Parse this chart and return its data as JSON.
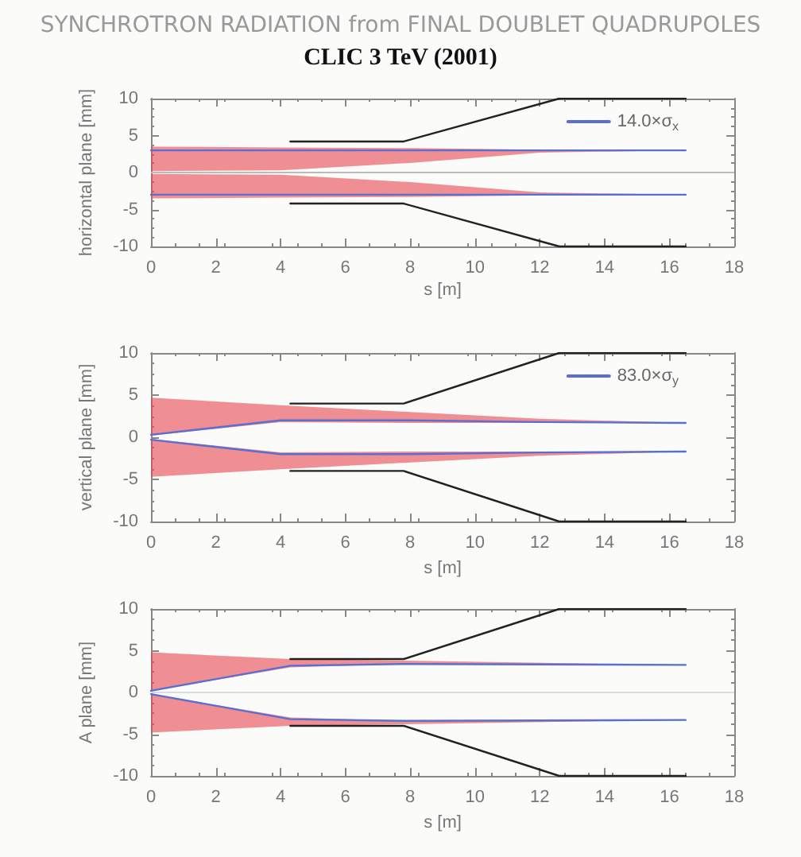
{
  "chart_data": [
    {
      "type": "line",
      "title": "SYNCHROTRON RADIATION from FINAL DOUBLET QUADRUPOLES",
      "subtitle": "CLIC 3 TeV (2001)",
      "xlabel": "s [m]",
      "ylabel": "horizontal plane [mm]",
      "xlim": [
        0,
        18
      ],
      "xticks": [
        0,
        2,
        4,
        6,
        8,
        10,
        12,
        14,
        16,
        18
      ],
      "ylim": [
        -10,
        10
      ],
      "yticks": [
        -10,
        -5,
        0,
        5,
        10
      ],
      "grid": false,
      "legend": "top right",
      "marker": "none",
      "line_style": "solid",
      "ref_lines": [
        {
          "axis": "y",
          "value": 0,
          "color": "#bbbbbb"
        }
      ],
      "series": [
        {
          "color": "#222222",
          "x": [
            4.3,
            7.8,
            12.6,
            16.5
          ],
          "values": [
            4.2,
            4.2,
            10,
            10
          ]
        },
        {
          "color": "#222222",
          "x": [
            4.3,
            7.8,
            12.6,
            16.5
          ],
          "values": [
            -4.2,
            -4.2,
            -10,
            -10
          ]
        },
        {
          "name": "14.0×σ$_{x}$",
          "color": "#5a6fd0",
          "x": [
            0,
            4,
            8,
            12,
            16.5
          ],
          "values": [
            3,
            3,
            3,
            3,
            3
          ],
          "lower": [
            0.2,
            0.3,
            1.3,
            2.7,
            3
          ],
          "upper": [
            3.5,
            3.4,
            3.3,
            3.1,
            3
          ]
        },
        {
          "color": "#5a6fd0",
          "x": [
            0,
            4,
            8,
            12,
            16.5
          ],
          "values": [
            -3,
            -3,
            -3,
            -3,
            -3
          ],
          "lower": [
            -3.5,
            -3.4,
            -3.3,
            -3.1,
            -3
          ],
          "upper": [
            -0.2,
            -0.3,
            -1.3,
            -2.7,
            -3
          ]
        }
      ]
    },
    {
      "type": "line",
      "xlabel": "s [m]",
      "ylabel": "vertical plane [mm]",
      "xlim": [
        0,
        18
      ],
      "xticks": [
        0,
        2,
        4,
        6,
        8,
        10,
        12,
        14,
        16,
        18
      ],
      "ylim": [
        -10,
        10
      ],
      "yticks": [
        -10,
        -5,
        0,
        5,
        10
      ],
      "grid": false,
      "legend": "top right",
      "marker": "none",
      "line_style": "solid",
      "series": [
        {
          "color": "#222222",
          "x": [
            4.3,
            7.8,
            12.6,
            16.5
          ],
          "values": [
            4,
            4,
            10,
            10
          ]
        },
        {
          "color": "#222222",
          "x": [
            4.3,
            7.8,
            12.6,
            16.5
          ],
          "values": [
            -4,
            -4,
            -10,
            -10
          ]
        },
        {
          "name": "83.0×σ$_{y}$",
          "color": "#5a6fd0",
          "x": [
            0,
            4,
            8,
            12,
            16.5
          ],
          "values": [
            0.3,
            2,
            2,
            1.8,
            1.7
          ],
          "lower": [
            0.2,
            1.8,
            1.7,
            1.7,
            1.7
          ],
          "upper": [
            4.7,
            3.8,
            3,
            2.2,
            1.7
          ]
        },
        {
          "color": "#5a6fd0",
          "x": [
            0,
            4,
            8,
            12,
            16.5
          ],
          "values": [
            -0.3,
            -2,
            -2,
            -1.8,
            -1.7
          ],
          "lower": [
            -4.7,
            -3.8,
            -3,
            -2.2,
            -1.7
          ],
          "upper": [
            -0.2,
            -1.8,
            -1.7,
            -1.7,
            -1.7
          ]
        }
      ]
    },
    {
      "type": "line",
      "xlabel": "s [m]",
      "ylabel": "A plane [mm]",
      "xlim": [
        0,
        18
      ],
      "xticks": [
        0,
        2,
        4,
        6,
        8,
        10,
        12,
        14,
        16,
        18
      ],
      "ylim": [
        -10,
        10
      ],
      "yticks": [
        -10,
        -5,
        0,
        5,
        10
      ],
      "grid": false,
      "marker": "none",
      "line_style": "solid",
      "ref_lines": [
        {
          "axis": "y",
          "value": 0,
          "color": "#dddddd"
        }
      ],
      "series": [
        {
          "color": "#222222",
          "x": [
            4.3,
            7.8,
            12.6,
            16.5
          ],
          "values": [
            4,
            4,
            10,
            10
          ]
        },
        {
          "color": "#222222",
          "x": [
            4.3,
            7.8,
            12.6,
            16.5
          ],
          "values": [
            -4,
            -4,
            -10,
            -10
          ]
        },
        {
          "color": "#5a6fd0",
          "x": [
            0,
            4.3,
            7.8,
            16.5
          ],
          "values": [
            0.2,
            3.2,
            3.4,
            3.3
          ],
          "lower": [
            0.2,
            3,
            3.4,
            3.3
          ],
          "upper": [
            4.8,
            4,
            3.8,
            3.3
          ]
        },
        {
          "color": "#5a6fd0",
          "x": [
            0,
            4.3,
            7.8,
            16.5
          ],
          "values": [
            -0.2,
            -3.2,
            -3.4,
            -3.3
          ],
          "lower": [
            -4.8,
            -4,
            -3.8,
            -3.3
          ],
          "upper": [
            -0.2,
            -3,
            -3.4,
            -3.3
          ]
        }
      ]
    }
  ]
}
